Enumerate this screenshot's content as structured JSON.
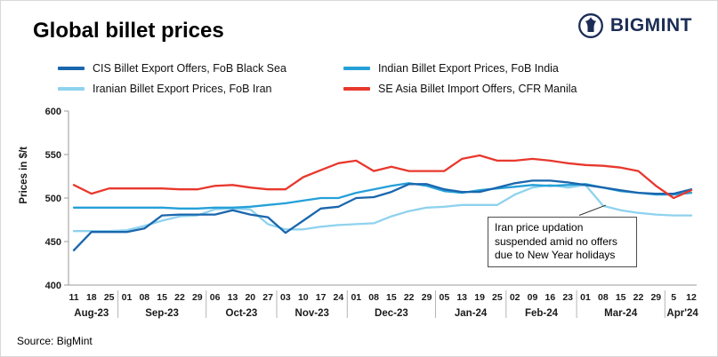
{
  "header": {
    "title": "Global billet prices",
    "brand": "BIGMINT"
  },
  "legend": [
    {
      "label": "CIS Billet Export Offers, FoB Black Sea",
      "color": "#1a66ad"
    },
    {
      "label": "Indian Billet Export Prices, FoB India",
      "color": "#24a0d8"
    },
    {
      "label": "Iranian Billet Export Prices, FoB Iran",
      "color": "#8fd2ee"
    },
    {
      "label": "SE Asia Billet Import Offers, CFR Manila",
      "color": "#e8382d"
    }
  ],
  "chart_data": {
    "type": "line",
    "title": "Global billet prices",
    "xlabel": "",
    "ylabel": "Prices in $/t",
    "ylim": [
      400,
      600
    ],
    "yticks": [
      400,
      450,
      500,
      550,
      600
    ],
    "grid": false,
    "legend_position": "top",
    "x_day_labels": [
      "11",
      "18",
      "25",
      "01",
      "08",
      "15",
      "22",
      "29",
      "06",
      "13",
      "20",
      "27",
      "03",
      "10",
      "17",
      "24",
      "01",
      "08",
      "15",
      "22",
      "29",
      "05",
      "13",
      "19",
      "25",
      "02",
      "09",
      "16",
      "23",
      "01",
      "08",
      "15",
      "22",
      "29",
      "5",
      "12"
    ],
    "month_groups": [
      {
        "label": "Aug-23",
        "count": 3
      },
      {
        "label": "Sep-23",
        "count": 5
      },
      {
        "label": "Oct-23",
        "count": 4
      },
      {
        "label": "Nov-23",
        "count": 4
      },
      {
        "label": "Dec-23",
        "count": 5
      },
      {
        "label": "Jan-24",
        "count": 4
      },
      {
        "label": "Feb-24",
        "count": 4
      },
      {
        "label": "Mar-24",
        "count": 5
      },
      {
        "label": "Apr'24",
        "count": 2
      }
    ],
    "series": [
      {
        "name": "Iranian Billet Export Prices, FoB Iran",
        "color": "#8fd2ee",
        "values": [
          462,
          462,
          462,
          463,
          468,
          474,
          479,
          480,
          487,
          488,
          487,
          470,
          464,
          464,
          467,
          469,
          470,
          471,
          479,
          485,
          489,
          490,
          492,
          492,
          492,
          504,
          512,
          515,
          512,
          515,
          491,
          486,
          483,
          481,
          480,
          480
        ]
      },
      {
        "name": "Indian Billet Export Prices, FoB India",
        "color": "#24a0d8",
        "values": [
          489,
          489,
          489,
          489,
          489,
          489,
          488,
          488,
          489,
          489,
          490,
          492,
          494,
          497,
          500,
          500,
          506,
          510,
          514,
          517,
          514,
          508,
          506,
          509,
          511,
          513,
          515,
          514,
          515,
          516,
          512,
          508,
          506,
          504,
          504,
          506
        ]
      },
      {
        "name": "CIS Billet Export Offers, FoB Black Sea",
        "color": "#1a66ad",
        "values": [
          440,
          461,
          461,
          461,
          465,
          480,
          481,
          481,
          481,
          486,
          481,
          478,
          460,
          474,
          488,
          490,
          500,
          501,
          507,
          516,
          516,
          510,
          507,
          507,
          512,
          517,
          520,
          520,
          518,
          515,
          512,
          509,
          506,
          505,
          505,
          510
        ]
      },
      {
        "name": "SE Asia Billet Import Offers, CFR Manila",
        "color": "#e8382d",
        "values": [
          515,
          505,
          511,
          511,
          511,
          511,
          510,
          510,
          514,
          515,
          512,
          510,
          510,
          524,
          532,
          540,
          543,
          531,
          536,
          531,
          531,
          531,
          545,
          549,
          543,
          543,
          545,
          543,
          540,
          538,
          537,
          535,
          531,
          514,
          500,
          509
        ]
      }
    ],
    "annotation": "Iran price updation suspended amid no offers due to New Year holidays"
  },
  "footer": {
    "source": "Source: BigMint"
  }
}
